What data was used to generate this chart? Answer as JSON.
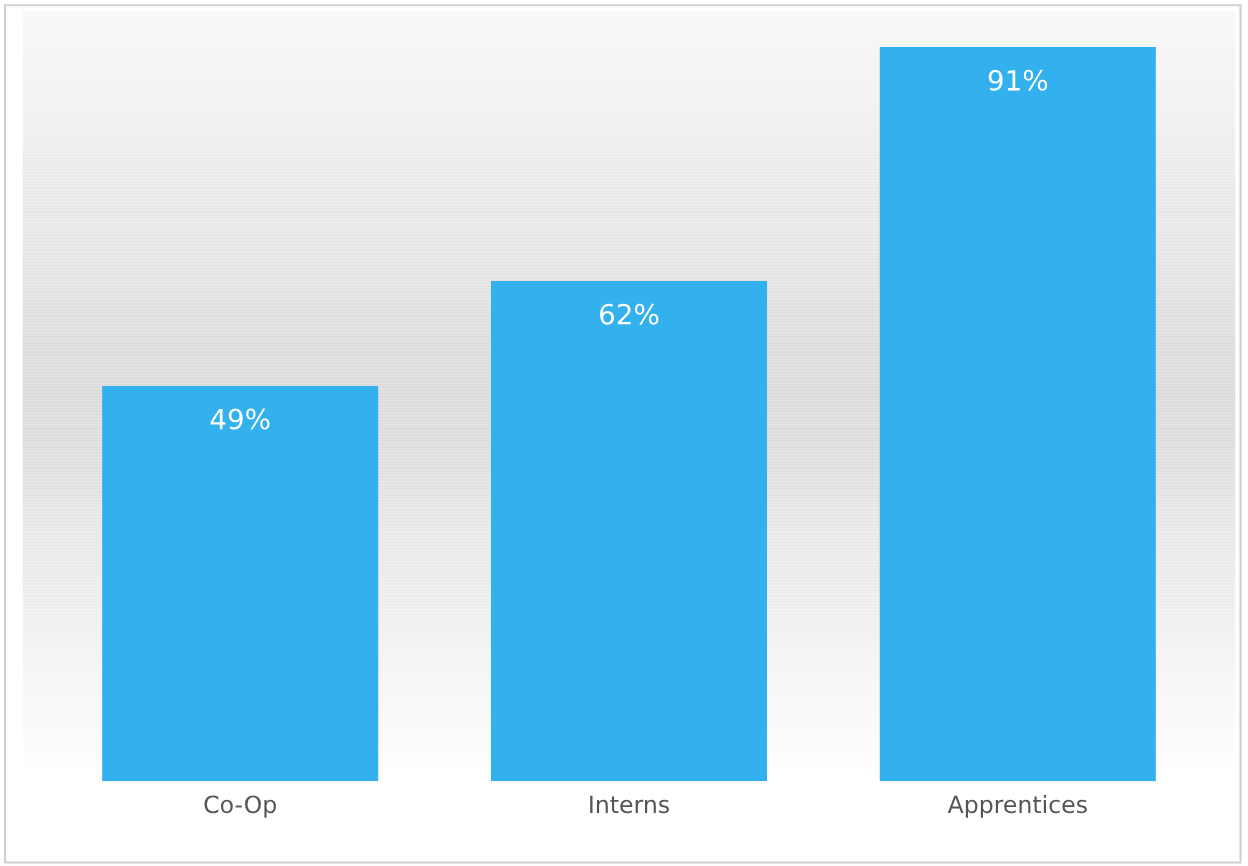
{
  "chart_data": {
    "type": "bar",
    "categories": [
      "Co-Op",
      "Interns",
      "Apprentices"
    ],
    "values": [
      49,
      62,
      91
    ],
    "value_labels": [
      "49%",
      "62%",
      "91%"
    ],
    "color": "#33b0ee",
    "tick_labels": "x",
    "grid": false,
    "legend": false
  }
}
